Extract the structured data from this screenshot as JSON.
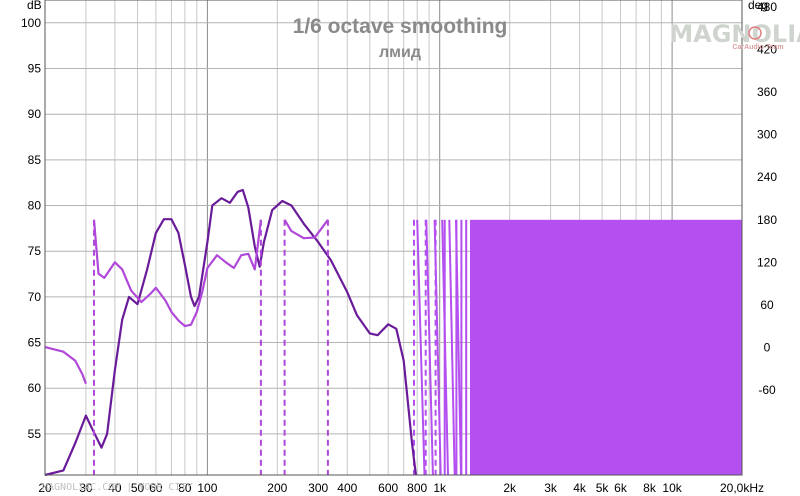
{
  "chart_data": {
    "type": "line",
    "title": "1/6 octave smoothing",
    "subtitle": "лмид",
    "ylabel_left": "dB",
    "ylabel_right": "deg",
    "x_scale": "log",
    "xlim": [
      20,
      20000
    ],
    "ylim_left": [
      50.5,
      102.5
    ],
    "ylim_right": [
      -180,
      490
    ],
    "grid": true,
    "x_ticks": [
      {
        "v": 20,
        "label": "20"
      },
      {
        "v": 30,
        "label": "30"
      },
      {
        "v": 40,
        "label": "40"
      },
      {
        "v": 50,
        "label": "50"
      },
      {
        "v": 60,
        "label": "60"
      },
      {
        "v": 80,
        "label": "80"
      },
      {
        "v": 100,
        "label": "100"
      },
      {
        "v": 200,
        "label": "200"
      },
      {
        "v": 300,
        "label": "300"
      },
      {
        "v": 400,
        "label": "400"
      },
      {
        "v": 600,
        "label": "600"
      },
      {
        "v": 800,
        "label": "800"
      },
      {
        "v": 1000,
        "label": "1k"
      },
      {
        "v": 2000,
        "label": "2k"
      },
      {
        "v": 3000,
        "label": "3k"
      },
      {
        "v": 4000,
        "label": "4k"
      },
      {
        "v": 5000,
        "label": "5k"
      },
      {
        "v": 6000,
        "label": "6k"
      },
      {
        "v": 8000,
        "label": "8k"
      },
      {
        "v": 10000,
        "label": "10k"
      },
      {
        "v": 20000,
        "label": "20,0kHz"
      }
    ],
    "y_ticks_left": [
      55,
      60,
      65,
      70,
      75,
      80,
      85,
      90,
      95,
      100
    ],
    "y_ticks_right": [
      -60,
      0,
      60,
      120,
      180,
      240,
      300,
      360,
      420,
      480
    ],
    "series": [
      {
        "color": "#6a1b9a",
        "axis": "left",
        "points": [
          [
            20,
            50
          ],
          [
            24,
            51
          ],
          [
            27,
            54
          ],
          [
            30,
            57
          ],
          [
            32,
            55.5
          ],
          [
            35,
            53.5
          ],
          [
            37,
            55
          ],
          [
            40,
            62
          ],
          [
            43,
            67.5
          ],
          [
            46,
            70
          ],
          [
            50,
            69.2
          ],
          [
            55,
            73
          ],
          [
            60,
            77
          ],
          [
            65,
            78.5
          ],
          [
            70,
            78.5
          ],
          [
            75,
            77
          ],
          [
            80,
            73.5
          ],
          [
            85,
            70
          ],
          [
            88,
            69
          ],
          [
            92,
            70
          ],
          [
            100,
            76
          ],
          [
            105,
            80
          ],
          [
            115,
            80.8
          ],
          [
            125,
            80.3
          ],
          [
            135,
            81.5
          ],
          [
            142,
            81.7
          ],
          [
            150,
            79.8
          ],
          [
            160,
            75.5
          ],
          [
            168,
            73.3
          ],
          [
            175,
            76
          ],
          [
            190,
            79.5
          ],
          [
            210,
            80.5
          ],
          [
            230,
            80
          ],
          [
            260,
            78
          ],
          [
            300,
            76
          ],
          [
            340,
            74
          ],
          [
            400,
            70.5
          ],
          [
            440,
            68
          ],
          [
            500,
            66
          ],
          [
            540,
            65.8
          ],
          [
            600,
            67
          ],
          [
            650,
            66.5
          ],
          [
            700,
            63
          ],
          [
            760,
            54
          ],
          [
            790,
            50
          ]
        ]
      },
      {
        "color": "#b048d9",
        "axis": "left",
        "points": [
          [
            20,
            64.5
          ],
          [
            24,
            64
          ],
          [
            27,
            63
          ],
          [
            29,
            61.5
          ],
          [
            30,
            60.5
          ]
        ]
      },
      {
        "color": "#b048d9",
        "axis": "right",
        "dashed_markers": [
          32.5,
          170,
          215,
          330,
          775,
          870,
          960,
          1050,
          1180,
          1240,
          1300
        ],
        "points": [
          [
            32.5,
            180
          ],
          [
            34,
            104
          ],
          [
            36,
            98
          ],
          [
            40,
            120
          ],
          [
            43,
            110
          ],
          [
            47,
            80
          ],
          [
            52,
            64
          ],
          [
            57,
            76
          ],
          [
            60,
            84
          ],
          [
            66,
            66
          ],
          [
            70,
            50
          ],
          [
            75,
            38
          ],
          [
            80,
            30
          ],
          [
            85,
            32
          ],
          [
            90,
            50
          ],
          [
            95,
            78
          ],
          [
            100,
            112
          ],
          [
            110,
            130
          ],
          [
            120,
            120
          ],
          [
            130,
            112
          ],
          [
            140,
            130
          ],
          [
            150,
            132
          ],
          [
            160,
            110
          ],
          [
            170,
            180
          ]
        ]
      },
      {
        "color": "#b048d9",
        "axis": "right",
        "points": [
          [
            215,
            180
          ],
          [
            230,
            164
          ],
          [
            260,
            154
          ],
          [
            290,
            155
          ],
          [
            330,
            180
          ]
        ]
      }
    ],
    "dense_band": {
      "color": "#b44ff0",
      "x_from": 1350,
      "x_to": 20000,
      "deg_top": 180,
      "deg_bottom": -180
    },
    "watermark": "MAGNOLIA",
    "watermark_sub": "CarAudio Team",
    "footer_text": "MAGNOLIAC.COM | YOUR CITY"
  }
}
